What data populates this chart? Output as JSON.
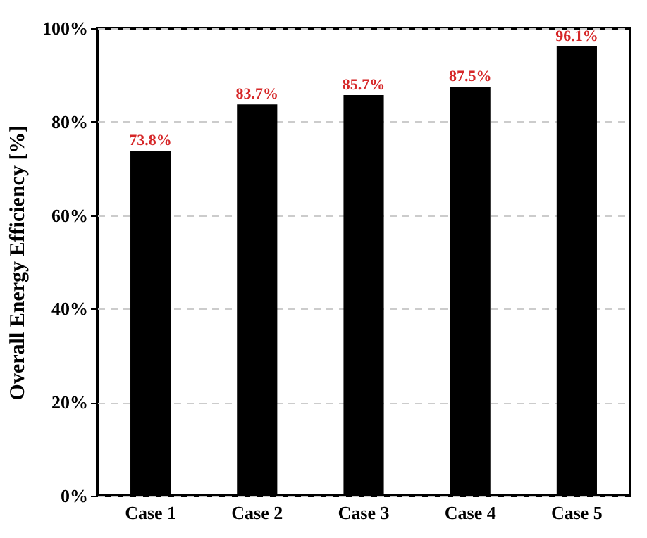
{
  "chart_data": {
    "type": "bar",
    "ylabel": "Overall Energy Efficiency [%]",
    "categories": [
      "Case 1",
      "Case 2",
      "Case 3",
      "Case 4",
      "Case 5"
    ],
    "values": [
      73.8,
      83.7,
      85.7,
      87.5,
      96.1
    ],
    "value_labels": [
      "73.8%",
      "83.7%",
      "85.7%",
      "87.5%",
      "96.1%"
    ],
    "color": "#000000",
    "ylim": [
      0,
      100
    ],
    "yticks": [
      {
        "value": 0,
        "label": "0%"
      },
      {
        "value": 20,
        "label": "20%"
      },
      {
        "value": 40,
        "label": "40%"
      },
      {
        "value": 60,
        "label": "60%"
      },
      {
        "value": 80,
        "label": "80%"
      },
      {
        "value": 100,
        "label": "100%"
      }
    ],
    "grid": "y"
  }
}
